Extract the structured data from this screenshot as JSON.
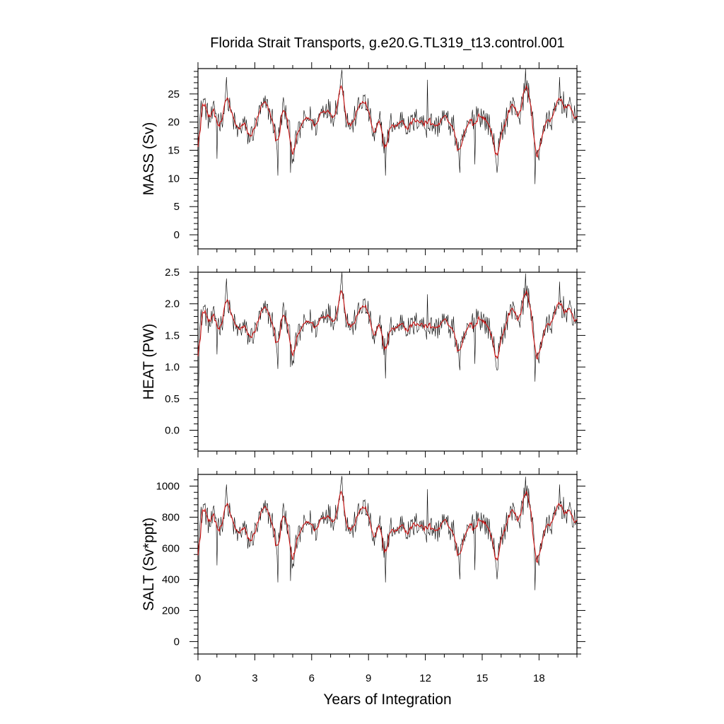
{
  "chart_data": {
    "type": "line",
    "title": "Florida Strait Transports, g.e20.G.TL319_t13.control.001",
    "xlabel": "Years of Integration",
    "xlim": [
      0,
      20
    ],
    "x_ticks": [
      0,
      3,
      6,
      9,
      12,
      15,
      18
    ],
    "x_tick_labels": [
      "0",
      "3",
      "6",
      "9",
      "12",
      "15",
      "18"
    ],
    "series_colors": {
      "raw": "#000000",
      "smoothed": "#c81010"
    },
    "panels": [
      {
        "ylabel": "MASS (Sv)",
        "ylim": [
          -2.5,
          29.5
        ],
        "y_ticks": [
          0,
          5,
          10,
          15,
          20,
          25
        ],
        "y_tick_labels": [
          "0",
          "5",
          "10",
          "15",
          "20",
          "25"
        ],
        "keypoints": [
          [
            0,
            11
          ],
          [
            0.1,
            21
          ],
          [
            0.3,
            24
          ],
          [
            0.6,
            20
          ],
          [
            0.9,
            22
          ],
          [
            1.2,
            20
          ],
          [
            1.5,
            24
          ],
          [
            1.8,
            21
          ],
          [
            2.1,
            18
          ],
          [
            2.4,
            20
          ],
          [
            2.7,
            17
          ],
          [
            3.0,
            19
          ],
          [
            3.3,
            22
          ],
          [
            3.6,
            23
          ],
          [
            3.9,
            21
          ],
          [
            4.2,
            16
          ],
          [
            4.5,
            23
          ],
          [
            4.8,
            19
          ],
          [
            5.0,
            14
          ],
          [
            5.3,
            18
          ],
          [
            5.6,
            20
          ],
          [
            5.9,
            21
          ],
          [
            6.2,
            19
          ],
          [
            6.5,
            22
          ],
          [
            6.8,
            23
          ],
          [
            7.1,
            21
          ],
          [
            7.4,
            24
          ],
          [
            7.6,
            28
          ],
          [
            7.8,
            21
          ],
          [
            8.1,
            19
          ],
          [
            8.4,
            22
          ],
          [
            8.7,
            24
          ],
          [
            9.0,
            22
          ],
          [
            9.3,
            17
          ],
          [
            9.6,
            20
          ],
          [
            9.9,
            15
          ],
          [
            10.2,
            20
          ],
          [
            10.5,
            19
          ],
          [
            10.8,
            21
          ],
          [
            11.1,
            19
          ],
          [
            11.4,
            20
          ],
          [
            11.7,
            21
          ],
          [
            12.0,
            19
          ],
          [
            12.3,
            20
          ],
          [
            12.6,
            19
          ],
          [
            12.9,
            21
          ],
          [
            13.2,
            20
          ],
          [
            13.5,
            19
          ],
          [
            13.8,
            14
          ],
          [
            14.1,
            18
          ],
          [
            14.4,
            20
          ],
          [
            14.7,
            22
          ],
          [
            15.0,
            21
          ],
          [
            15.3,
            20
          ],
          [
            15.6,
            17
          ],
          [
            15.8,
            14
          ],
          [
            16.1,
            19
          ],
          [
            16.4,
            22
          ],
          [
            16.7,
            23
          ],
          [
            17.0,
            21
          ],
          [
            17.3,
            27
          ],
          [
            17.6,
            23
          ],
          [
            17.9,
            13
          ],
          [
            18.2,
            19
          ],
          [
            18.5,
            20
          ],
          [
            18.8,
            21
          ],
          [
            19.1,
            24
          ],
          [
            19.4,
            23
          ],
          [
            19.7,
            22
          ],
          [
            20,
            21
          ]
        ],
        "spikes": [
          [
            0.05,
            12
          ],
          [
            1.5,
            28
          ],
          [
            1.0,
            13.5
          ],
          [
            4.2,
            10.5
          ],
          [
            4.9,
            11
          ],
          [
            7.6,
            29.3
          ],
          [
            9.9,
            10.5
          ],
          [
            12.1,
            27.5
          ],
          [
            13.8,
            11
          ],
          [
            14.6,
            12.5
          ],
          [
            15.8,
            11
          ],
          [
            17.3,
            29.5
          ],
          [
            17.8,
            9
          ],
          [
            19.1,
            28
          ]
        ]
      },
      {
        "ylabel": "HEAT (PW)",
        "ylim": [
          -0.33,
          2.5
        ],
        "y_ticks": [
          0.0,
          0.5,
          1.0,
          1.5,
          2.0,
          2.5
        ],
        "y_tick_labels": [
          "0.0",
          "0.5",
          "1.0",
          "1.5",
          "2.0",
          "2.5"
        ],
        "keypoints": [
          [
            0,
            0.85
          ],
          [
            0.1,
            1.65
          ],
          [
            0.3,
            1.95
          ],
          [
            0.6,
            1.65
          ],
          [
            0.9,
            1.8
          ],
          [
            1.2,
            1.65
          ],
          [
            1.5,
            2.05
          ],
          [
            1.8,
            1.75
          ],
          [
            2.1,
            1.55
          ],
          [
            2.4,
            1.65
          ],
          [
            2.7,
            1.45
          ],
          [
            3.0,
            1.55
          ],
          [
            3.3,
            1.8
          ],
          [
            3.6,
            1.9
          ],
          [
            3.9,
            1.75
          ],
          [
            4.2,
            1.3
          ],
          [
            4.5,
            1.9
          ],
          [
            4.8,
            1.55
          ],
          [
            5.0,
            1.15
          ],
          [
            5.3,
            1.5
          ],
          [
            5.6,
            1.65
          ],
          [
            5.9,
            1.75
          ],
          [
            6.2,
            1.6
          ],
          [
            6.5,
            1.8
          ],
          [
            6.8,
            1.9
          ],
          [
            7.1,
            1.75
          ],
          [
            7.4,
            1.95
          ],
          [
            7.6,
            2.35
          ],
          [
            7.8,
            1.8
          ],
          [
            8.1,
            1.6
          ],
          [
            8.4,
            1.8
          ],
          [
            8.7,
            2.0
          ],
          [
            9.0,
            1.85
          ],
          [
            9.3,
            1.4
          ],
          [
            9.6,
            1.65
          ],
          [
            9.9,
            1.25
          ],
          [
            10.2,
            1.65
          ],
          [
            10.5,
            1.6
          ],
          [
            10.8,
            1.75
          ],
          [
            11.1,
            1.6
          ],
          [
            11.4,
            1.65
          ],
          [
            11.7,
            1.75
          ],
          [
            12.0,
            1.6
          ],
          [
            12.3,
            1.65
          ],
          [
            12.6,
            1.6
          ],
          [
            12.9,
            1.75
          ],
          [
            13.2,
            1.65
          ],
          [
            13.5,
            1.6
          ],
          [
            13.8,
            1.15
          ],
          [
            14.1,
            1.5
          ],
          [
            14.4,
            1.65
          ],
          [
            14.7,
            1.85
          ],
          [
            15.0,
            1.75
          ],
          [
            15.3,
            1.65
          ],
          [
            15.6,
            1.4
          ],
          [
            15.8,
            1.1
          ],
          [
            16.1,
            1.55
          ],
          [
            16.4,
            1.85
          ],
          [
            16.7,
            1.9
          ],
          [
            17.0,
            1.75
          ],
          [
            17.3,
            2.25
          ],
          [
            17.6,
            1.9
          ],
          [
            17.9,
            1.05
          ],
          [
            18.2,
            1.55
          ],
          [
            18.5,
            1.65
          ],
          [
            18.8,
            1.75
          ],
          [
            19.1,
            2.0
          ],
          [
            19.4,
            1.9
          ],
          [
            19.7,
            1.85
          ],
          [
            20,
            1.75
          ]
        ],
        "spikes": [
          [
            0.05,
            0.75
          ],
          [
            1.5,
            2.4
          ],
          [
            1.0,
            1.2
          ],
          [
            4.2,
            0.97
          ],
          [
            4.9,
            1.0
          ],
          [
            7.6,
            2.5
          ],
          [
            9.9,
            0.82
          ],
          [
            12.1,
            2.15
          ],
          [
            13.8,
            0.95
          ],
          [
            14.6,
            1.05
          ],
          [
            15.8,
            0.95
          ],
          [
            17.3,
            2.48
          ],
          [
            17.8,
            0.77
          ],
          [
            19.1,
            2.35
          ]
        ]
      },
      {
        "ylabel": "SALT (Sv*ppt)",
        "ylim": [
          -80,
          1075
        ],
        "y_ticks": [
          0,
          200,
          400,
          600,
          800,
          1000
        ],
        "y_tick_labels": [
          "0",
          "200",
          "400",
          "600",
          "800",
          "1000"
        ],
        "keypoints": [
          [
            0,
            400
          ],
          [
            0.1,
            760
          ],
          [
            0.3,
            880
          ],
          [
            0.6,
            740
          ],
          [
            0.9,
            810
          ],
          [
            1.2,
            740
          ],
          [
            1.5,
            880
          ],
          [
            1.8,
            770
          ],
          [
            2.1,
            670
          ],
          [
            2.4,
            740
          ],
          [
            2.7,
            630
          ],
          [
            3.0,
            700
          ],
          [
            3.3,
            800
          ],
          [
            3.6,
            850
          ],
          [
            3.9,
            780
          ],
          [
            4.2,
            590
          ],
          [
            4.5,
            840
          ],
          [
            4.8,
            700
          ],
          [
            5.0,
            520
          ],
          [
            5.3,
            670
          ],
          [
            5.6,
            740
          ],
          [
            5.9,
            780
          ],
          [
            6.2,
            700
          ],
          [
            6.5,
            800
          ],
          [
            6.8,
            840
          ],
          [
            7.1,
            780
          ],
          [
            7.4,
            880
          ],
          [
            7.6,
            1020
          ],
          [
            7.8,
            780
          ],
          [
            8.1,
            700
          ],
          [
            8.4,
            800
          ],
          [
            8.7,
            880
          ],
          [
            9.0,
            810
          ],
          [
            9.3,
            630
          ],
          [
            9.6,
            740
          ],
          [
            9.9,
            560
          ],
          [
            10.2,
            740
          ],
          [
            10.5,
            700
          ],
          [
            10.8,
            780
          ],
          [
            11.1,
            700
          ],
          [
            11.4,
            740
          ],
          [
            11.7,
            780
          ],
          [
            12.0,
            700
          ],
          [
            12.3,
            740
          ],
          [
            12.6,
            700
          ],
          [
            12.9,
            780
          ],
          [
            13.2,
            740
          ],
          [
            13.5,
            700
          ],
          [
            13.8,
            520
          ],
          [
            14.1,
            670
          ],
          [
            14.4,
            740
          ],
          [
            14.7,
            810
          ],
          [
            15.0,
            780
          ],
          [
            15.3,
            740
          ],
          [
            15.6,
            630
          ],
          [
            15.8,
            520
          ],
          [
            16.1,
            700
          ],
          [
            16.4,
            810
          ],
          [
            16.7,
            840
          ],
          [
            17.0,
            780
          ],
          [
            17.3,
            990
          ],
          [
            17.6,
            840
          ],
          [
            17.9,
            480
          ],
          [
            18.2,
            700
          ],
          [
            18.5,
            740
          ],
          [
            18.8,
            780
          ],
          [
            19.1,
            880
          ],
          [
            19.4,
            840
          ],
          [
            19.7,
            810
          ],
          [
            20,
            780
          ]
        ],
        "spikes": [
          [
            0.05,
            390
          ],
          [
            1.5,
            1010
          ],
          [
            1.0,
            490
          ],
          [
            4.2,
            380
          ],
          [
            4.9,
            390
          ],
          [
            7.6,
            1065
          ],
          [
            9.9,
            380
          ],
          [
            12.1,
            980
          ],
          [
            13.8,
            400
          ],
          [
            14.6,
            460
          ],
          [
            15.8,
            400
          ],
          [
            17.3,
            1060
          ],
          [
            17.8,
            330
          ],
          [
            19.1,
            1010
          ]
        ]
      }
    ]
  }
}
